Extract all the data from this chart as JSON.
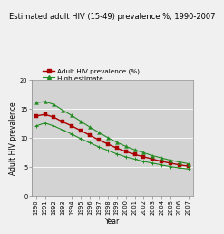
{
  "title": "Estimated adult HIV (15-49) prevalence %, 1990-2007",
  "xlabel": "Year",
  "ylabel": "Adult HIV prevalence",
  "years": [
    1990,
    1991,
    1992,
    1993,
    1994,
    1995,
    1996,
    1997,
    1998,
    1999,
    2000,
    2001,
    2002,
    2003,
    2004,
    2005,
    2006,
    2007
  ],
  "hiv_prevalence": [
    13.7,
    14.0,
    13.5,
    12.7,
    12.0,
    11.2,
    10.4,
    9.6,
    8.9,
    8.2,
    7.6,
    7.1,
    6.7,
    6.3,
    5.9,
    5.6,
    5.3,
    5.1
  ],
  "high_estimate": [
    16.0,
    16.2,
    15.7,
    14.7,
    13.8,
    12.8,
    11.8,
    10.9,
    10.0,
    9.2,
    8.5,
    7.9,
    7.4,
    6.9,
    6.5,
    6.1,
    5.8,
    5.5
  ],
  "low_estimate": [
    12.0,
    12.5,
    12.0,
    11.3,
    10.6,
    9.8,
    9.1,
    8.4,
    7.8,
    7.2,
    6.7,
    6.3,
    5.9,
    5.6,
    5.3,
    5.0,
    4.8,
    4.6
  ],
  "hiv_color": "#aa0000",
  "estimate_color": "#228B22",
  "bg_color": "#d3d3d3",
  "fig_bg_color": "#f0f0f0",
  "ylim": [
    0.0,
    20.0
  ],
  "yticks": [
    0.0,
    5.0,
    10.0,
    15.0,
    20.0
  ],
  "title_fontsize": 6.0,
  "axis_label_fontsize": 5.5,
  "tick_fontsize": 4.8,
  "legend_fontsize": 5.2
}
